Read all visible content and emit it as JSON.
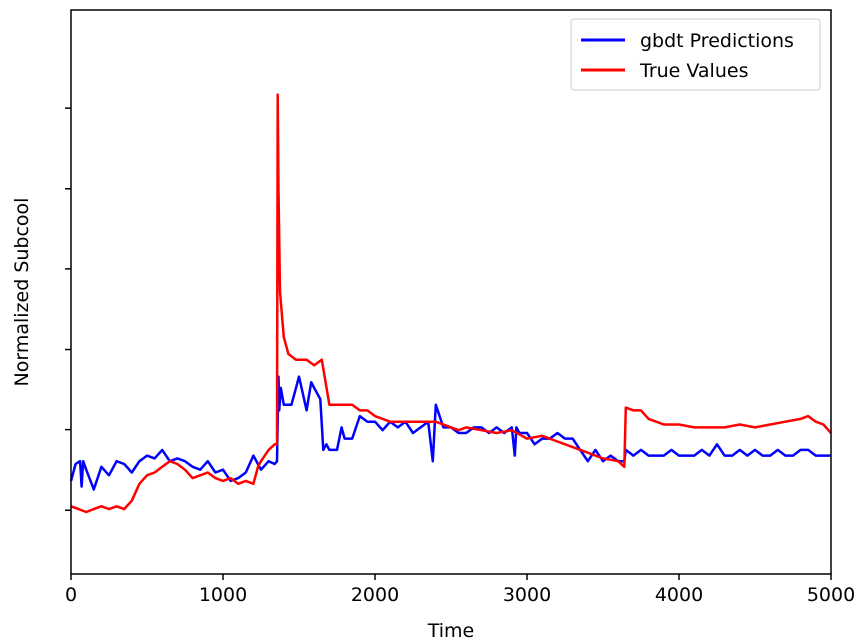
{
  "chart_data": {
    "type": "line",
    "title": "",
    "xlabel": "Time",
    "ylabel": "Normalized Subcool",
    "xlim": [
      0,
      5000
    ],
    "ylim": [
      0,
      1
    ],
    "y_ticklabels_shown": false,
    "x_ticks": [
      0,
      1000,
      2000,
      3000,
      4000,
      5000
    ],
    "x_ticklabels": [
      "0",
      "1000",
      "2000",
      "3000",
      "4000",
      "5000"
    ],
    "y_tick_marks": [
      0.113,
      0.256,
      0.398,
      0.541,
      0.683,
      0.826
    ],
    "grid": false,
    "legend_position": "top-right",
    "series": [
      {
        "name": "gbdt Predictions",
        "color": "#0000ff",
        "x": [
          0,
          30,
          60,
          70,
          80,
          100,
          150,
          200,
          250,
          300,
          350,
          400,
          450,
          500,
          550,
          600,
          650,
          700,
          750,
          800,
          850,
          900,
          950,
          1000,
          1050,
          1100,
          1150,
          1200,
          1250,
          1300,
          1340,
          1355,
          1365,
          1370,
          1380,
          1400,
          1450,
          1480,
          1500,
          1550,
          1580,
          1600,
          1640,
          1660,
          1680,
          1700,
          1720,
          1750,
          1780,
          1800,
          1850,
          1900,
          1950,
          2000,
          2050,
          2100,
          2150,
          2200,
          2250,
          2300,
          2350,
          2380,
          2400,
          2450,
          2500,
          2550,
          2600,
          2650,
          2700,
          2750,
          2800,
          2850,
          2900,
          2920,
          2930,
          2950,
          3000,
          3050,
          3100,
          3150,
          3200,
          3250,
          3300,
          3350,
          3400,
          3450,
          3500,
          3550,
          3600,
          3640,
          3650,
          3700,
          3750,
          3800,
          3850,
          3900,
          3950,
          4000,
          4050,
          4100,
          4150,
          4200,
          4250,
          4300,
          4350,
          4400,
          4450,
          4500,
          4550,
          4600,
          4650,
          4700,
          4750,
          4800,
          4850,
          4900,
          4950,
          5000
        ],
        "y": [
          0.165,
          0.195,
          0.2,
          0.155,
          0.2,
          0.185,
          0.15,
          0.19,
          0.175,
          0.2,
          0.195,
          0.18,
          0.2,
          0.21,
          0.205,
          0.22,
          0.2,
          0.205,
          0.2,
          0.19,
          0.185,
          0.2,
          0.18,
          0.185,
          0.165,
          0.17,
          0.18,
          0.21,
          0.185,
          0.2,
          0.195,
          0.2,
          0.35,
          0.29,
          0.33,
          0.3,
          0.3,
          0.33,
          0.35,
          0.29,
          0.34,
          0.33,
          0.31,
          0.22,
          0.23,
          0.22,
          0.22,
          0.22,
          0.26,
          0.24,
          0.24,
          0.28,
          0.27,
          0.27,
          0.255,
          0.27,
          0.26,
          0.27,
          0.25,
          0.26,
          0.27,
          0.2,
          0.3,
          0.26,
          0.26,
          0.25,
          0.25,
          0.26,
          0.26,
          0.25,
          0.26,
          0.25,
          0.26,
          0.21,
          0.26,
          0.25,
          0.25,
          0.23,
          0.24,
          0.24,
          0.25,
          0.24,
          0.24,
          0.22,
          0.2,
          0.22,
          0.2,
          0.21,
          0.2,
          0.2,
          0.22,
          0.21,
          0.22,
          0.21,
          0.21,
          0.21,
          0.22,
          0.21,
          0.21,
          0.21,
          0.22,
          0.21,
          0.23,
          0.21,
          0.21,
          0.22,
          0.21,
          0.22,
          0.21,
          0.21,
          0.22,
          0.21,
          0.21,
          0.22,
          0.22,
          0.21,
          0.21,
          0.21
        ]
      },
      {
        "name": "True Values",
        "color": "#ff0000",
        "x": [
          0,
          50,
          100,
          150,
          200,
          250,
          300,
          350,
          400,
          450,
          500,
          550,
          600,
          650,
          700,
          750,
          800,
          850,
          900,
          950,
          1000,
          1050,
          1100,
          1150,
          1200,
          1230,
          1250,
          1300,
          1340,
          1355,
          1360,
          1365,
          1375,
          1400,
          1430,
          1480,
          1550,
          1600,
          1650,
          1700,
          1750,
          1800,
          1850,
          1900,
          1950,
          2000,
          2100,
          2200,
          2300,
          2400,
          2500,
          2550,
          2600,
          2700,
          2800,
          2900,
          3000,
          3100,
          3200,
          3300,
          3400,
          3500,
          3600,
          3640,
          3650,
          3700,
          3750,
          3800,
          3850,
          3900,
          4000,
          4100,
          4200,
          4300,
          4400,
          4500,
          4600,
          4700,
          4800,
          4850,
          4900,
          4950,
          5000
        ],
        "y": [
          0.12,
          0.115,
          0.11,
          0.115,
          0.12,
          0.115,
          0.12,
          0.115,
          0.13,
          0.16,
          0.175,
          0.18,
          0.19,
          0.2,
          0.195,
          0.185,
          0.17,
          0.175,
          0.18,
          0.17,
          0.165,
          0.17,
          0.16,
          0.165,
          0.16,
          0.19,
          0.2,
          0.22,
          0.23,
          0.23,
          0.85,
          0.68,
          0.5,
          0.42,
          0.39,
          0.38,
          0.38,
          0.37,
          0.38,
          0.3,
          0.3,
          0.3,
          0.3,
          0.29,
          0.29,
          0.28,
          0.27,
          0.27,
          0.27,
          0.27,
          0.26,
          0.255,
          0.26,
          0.255,
          0.25,
          0.255,
          0.24,
          0.245,
          0.235,
          0.225,
          0.215,
          0.205,
          0.2,
          0.19,
          0.295,
          0.29,
          0.29,
          0.275,
          0.27,
          0.265,
          0.265,
          0.26,
          0.26,
          0.26,
          0.265,
          0.26,
          0.265,
          0.27,
          0.275,
          0.28,
          0.27,
          0.265,
          0.25
        ]
      }
    ]
  }
}
